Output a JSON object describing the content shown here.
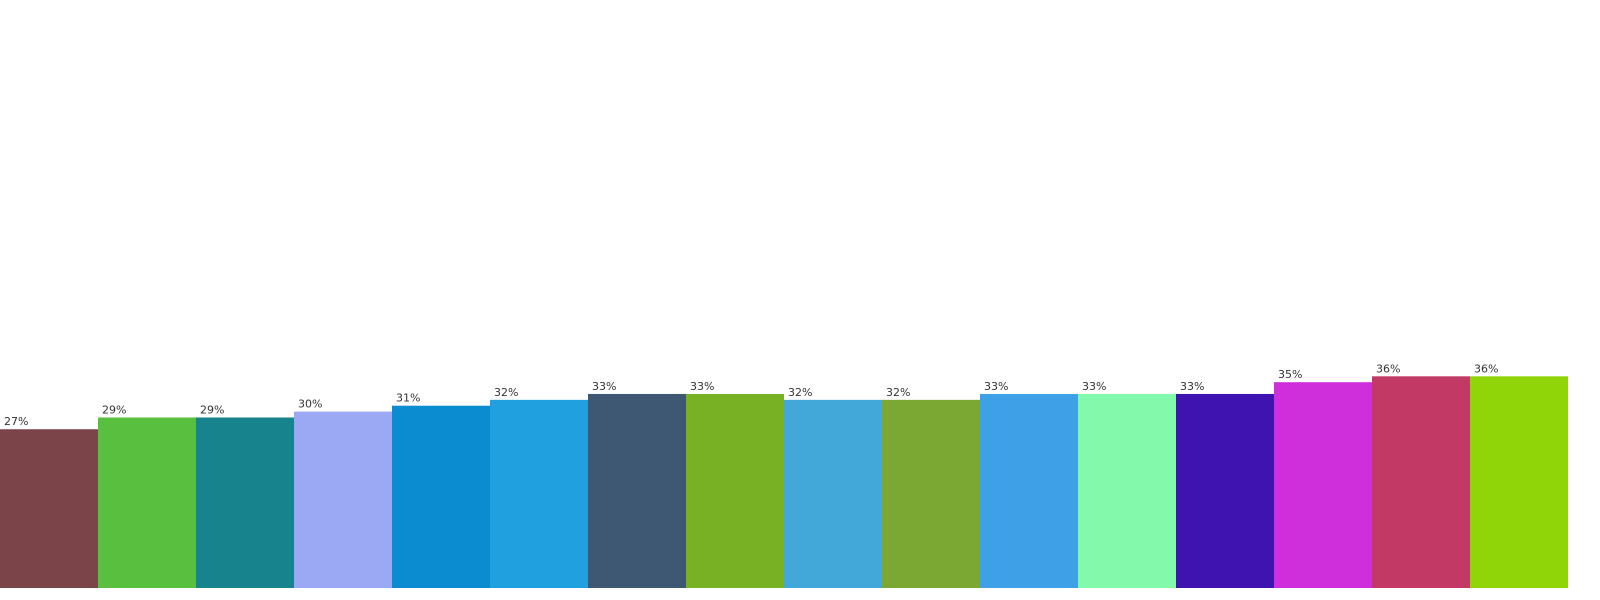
{
  "chart_data": {
    "type": "bar",
    "title": "",
    "xlabel": "",
    "ylabel": "",
    "ylim": [
      0,
      100
    ],
    "grid": false,
    "legend": "none",
    "value_suffix": "%",
    "bars": [
      {
        "value": 27,
        "label": "27%",
        "color": "#7a4448"
      },
      {
        "value": 29,
        "label": "29%",
        "color": "#58c03e"
      },
      {
        "value": 29,
        "label": "29%",
        "color": "#17838d"
      },
      {
        "value": 30,
        "label": "30%",
        "color": "#9ba8f3"
      },
      {
        "value": 31,
        "label": "31%",
        "color": "#0b8bd0"
      },
      {
        "value": 32,
        "label": "32%",
        "color": "#21a0e0"
      },
      {
        "value": 33,
        "label": "33%",
        "color": "#3e5874"
      },
      {
        "value": 33,
        "label": "33%",
        "color": "#78b123"
      },
      {
        "value": 32,
        "label": "32%",
        "color": "#42a8d9"
      },
      {
        "value": 32,
        "label": "32%",
        "color": "#7aa832"
      },
      {
        "value": 33,
        "label": "33%",
        "color": "#3ea1e8"
      },
      {
        "value": 33,
        "label": "33%",
        "color": "#82f9ab"
      },
      {
        "value": 33,
        "label": "33%",
        "color": "#3e13b0"
      },
      {
        "value": 35,
        "label": "35%",
        "color": "#cf2edb"
      },
      {
        "value": 36,
        "label": "36%",
        "color": "#c13964"
      },
      {
        "value": 36,
        "label": "36%",
        "color": "#8fd507"
      }
    ]
  }
}
